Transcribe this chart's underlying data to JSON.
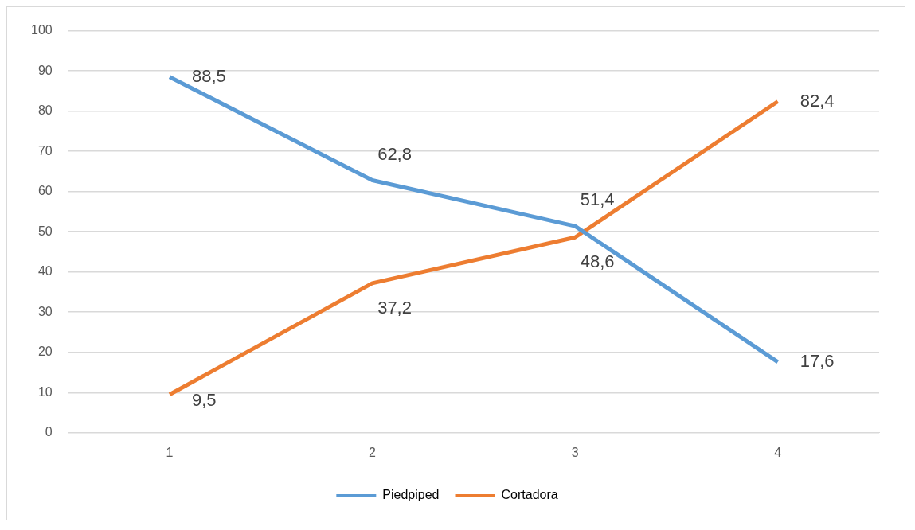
{
  "chart_data": {
    "type": "line",
    "categories": [
      "1",
      "2",
      "3",
      "4"
    ],
    "series": [
      {
        "name": "Piedpiped",
        "color": "#5b9bd5",
        "values": [
          88.5,
          62.8,
          51.4,
          17.6
        ],
        "value_labels": [
          "88,5",
          "62,8",
          "51,4",
          "17,6"
        ]
      },
      {
        "name": "Cortadora",
        "color": "#ed7d31",
        "values": [
          9.5,
          37.2,
          48.6,
          82.4
        ],
        "value_labels": [
          "9,5",
          "37,2",
          "48,6",
          "82,4"
        ]
      }
    ],
    "ylim": [
      0,
      100
    ],
    "yticks": [
      0,
      10,
      20,
      30,
      40,
      50,
      60,
      70,
      80,
      90,
      100
    ],
    "grid": "y",
    "legend": "bottom",
    "marker": "none"
  }
}
